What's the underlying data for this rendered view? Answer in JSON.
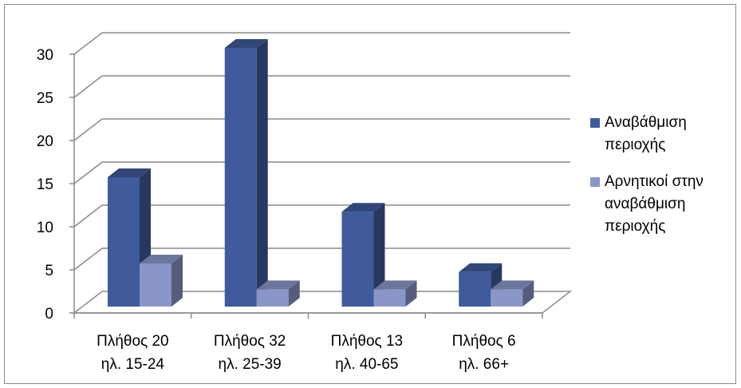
{
  "chart_data": {
    "type": "bar",
    "categories": [
      [
        "Πλήθος 20",
        "ηλ. 15-24"
      ],
      [
        "Πλήθος 32",
        "ηλ. 25-39"
      ],
      [
        "Πλήθος 13",
        "ηλ. 40-65"
      ],
      [
        "Πλήθος 6",
        "ηλ. 66+"
      ]
    ],
    "series": [
      {
        "name": "Αναβάθμιση\nπεριοχής",
        "values": [
          15,
          30,
          11,
          4
        ],
        "color": "#3f5b9b"
      },
      {
        "name": "Αρνητικοί στην\nαναβάθμιση\nπεριοχής",
        "values": [
          5,
          2,
          2,
          2
        ],
        "color": "#8b96c8"
      }
    ],
    "ylim": [
      0,
      30
    ],
    "yticks": [
      "0",
      "5",
      "10",
      "15",
      "20",
      "25",
      "30"
    ],
    "grid": true,
    "legend": "right",
    "style": "3d-clustered-column"
  }
}
